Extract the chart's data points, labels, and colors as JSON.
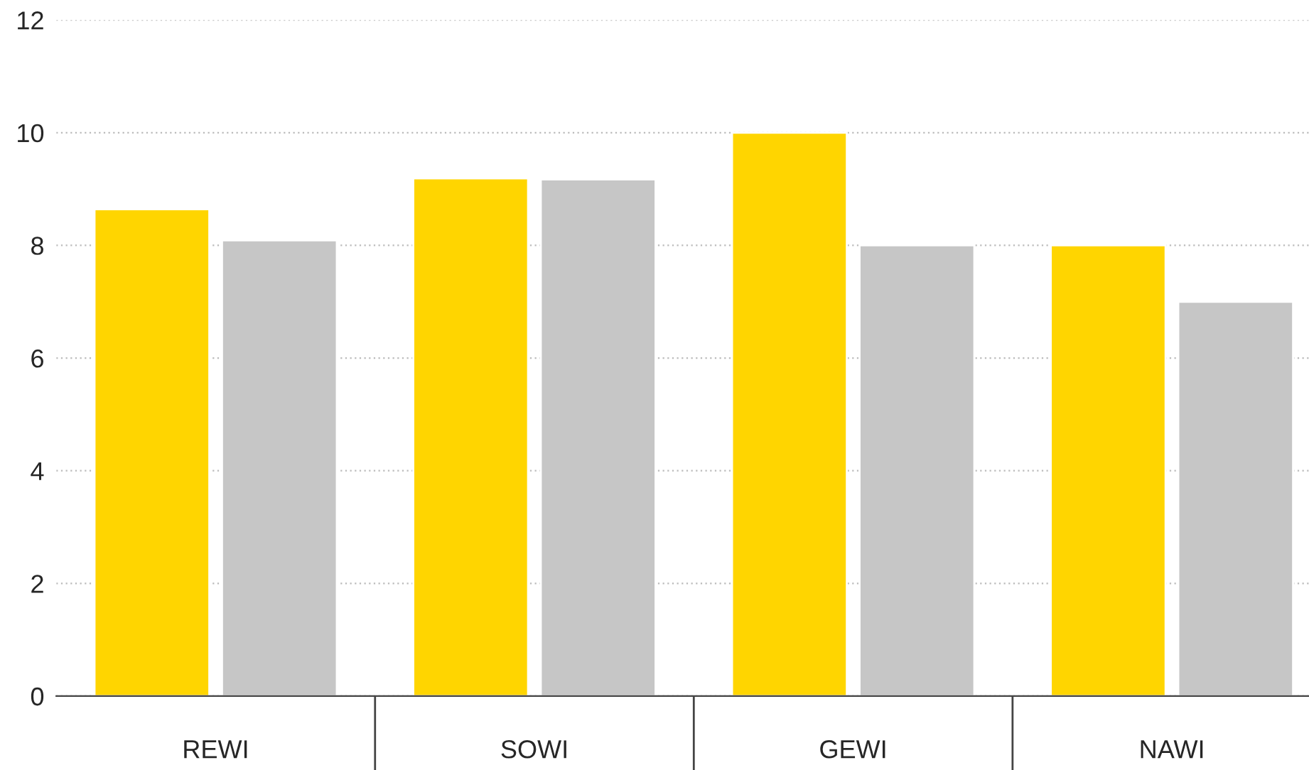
{
  "chart_data": {
    "type": "bar",
    "categories": [
      "REWI",
      "SOWI",
      "GEWI",
      "NAWI"
    ],
    "series": [
      {
        "color": "#ffd500",
        "values": [
          8.64,
          9.19,
          10.0,
          8.0
        ]
      },
      {
        "color": "#c6c6c6",
        "values": [
          8.09,
          9.17,
          8.0,
          7.0
        ]
      }
    ],
    "ylim": [
      0,
      12
    ],
    "yticks": [
      0,
      2,
      4,
      6,
      8,
      10,
      12
    ],
    "grid": "y"
  }
}
